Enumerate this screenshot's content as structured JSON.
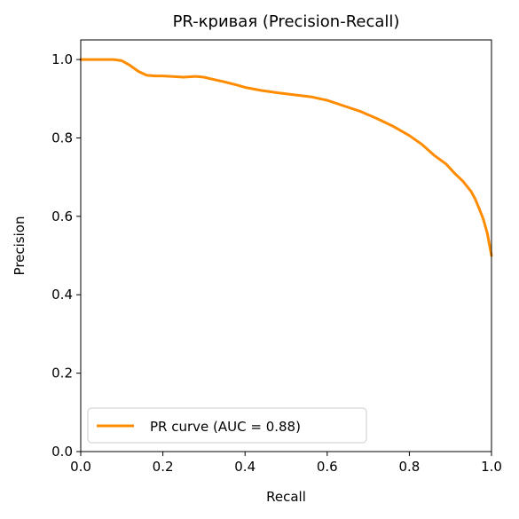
{
  "chart_data": {
    "type": "line",
    "title": "PR-кривая (Precision-Recall)",
    "xlabel": "Recall",
    "ylabel": "Precision",
    "xlim": [
      0.0,
      1.0
    ],
    "ylim": [
      0.0,
      1.05
    ],
    "xticks": [
      "0.0",
      "0.2",
      "0.4",
      "0.6",
      "0.8",
      "1.0"
    ],
    "yticks": [
      "0.0",
      "0.2",
      "0.4",
      "0.6",
      "0.8",
      "1.0"
    ],
    "grid": false,
    "legend_position": "lower-left",
    "series": [
      {
        "name": "PR curve (AUC = 0.88)",
        "color": "#ff8c00",
        "x": [
          0.0,
          0.02,
          0.05,
          0.08,
          0.1,
          0.12,
          0.14,
          0.16,
          0.18,
          0.2,
          0.22,
          0.25,
          0.28,
          0.3,
          0.32,
          0.35,
          0.38,
          0.4,
          0.44,
          0.48,
          0.52,
          0.56,
          0.6,
          0.64,
          0.68,
          0.72,
          0.76,
          0.8,
          0.83,
          0.86,
          0.89,
          0.91,
          0.93,
          0.95,
          0.96,
          0.97,
          0.98,
          0.99,
          1.0
        ],
        "y": [
          1.0,
          1.0,
          1.0,
          1.0,
          0.997,
          0.985,
          0.97,
          0.96,
          0.958,
          0.958,
          0.957,
          0.955,
          0.957,
          0.955,
          0.95,
          0.943,
          0.935,
          0.929,
          0.921,
          0.915,
          0.91,
          0.905,
          0.896,
          0.882,
          0.868,
          0.85,
          0.83,
          0.806,
          0.784,
          0.756,
          0.733,
          0.71,
          0.69,
          0.664,
          0.645,
          0.62,
          0.593,
          0.556,
          0.5
        ]
      }
    ]
  }
}
